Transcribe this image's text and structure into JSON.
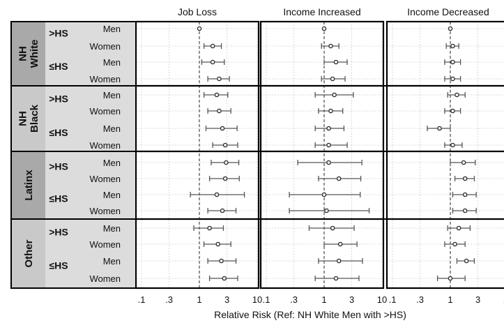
{
  "chart_data": {
    "type": "forest",
    "xlabel": "Relative Risk (Ref: NH White Men with >HS)",
    "x_scale": "log",
    "xlim": [
      0.1,
      10
    ],
    "xticks": [
      ".1",
      ".3",
      "1",
      "3",
      "10"
    ],
    "xtick_values": [
      0.1,
      0.3,
      1,
      3,
      10
    ],
    "reference_line": 1,
    "grid": true,
    "panels": [
      "Job Loss",
      "Income Increased",
      "Income Decreased"
    ],
    "groups": [
      {
        "name_lines": [
          "NH",
          "White"
        ],
        "shade": "dark"
      },
      {
        "name_lines": [
          "NH",
          "Black"
        ],
        "shade": "light"
      },
      {
        "name_lines": [
          "Latinx"
        ],
        "shade": "dark"
      },
      {
        "name_lines": [
          "Other"
        ],
        "shade": "light"
      }
    ],
    "rows": [
      {
        "group": 0,
        "edu": ">HS",
        "sex": "Men",
        "estimates": [
          [
            1.0,
            1.0,
            1.0
          ],
          [
            1.0,
            1.0,
            1.0
          ],
          [
            1.0,
            1.0,
            1.0
          ]
        ]
      },
      {
        "group": 0,
        "edu": "",
        "sex": "Women",
        "estimates": [
          [
            1.7,
            1.2,
            2.4
          ],
          [
            1.3,
            0.9,
            1.8
          ],
          [
            1.1,
            0.85,
            1.4
          ]
        ]
      },
      {
        "group": 0,
        "edu": "≤HS",
        "sex": "Men",
        "estimates": [
          [
            1.7,
            1.1,
            2.7
          ],
          [
            1.6,
            1.0,
            2.5
          ],
          [
            1.1,
            0.8,
            1.5
          ]
        ]
      },
      {
        "group": 0,
        "edu": "",
        "sex": "Women",
        "estimates": [
          [
            2.2,
            1.4,
            3.3
          ],
          [
            1.4,
            0.9,
            2.3
          ],
          [
            1.1,
            0.8,
            1.5
          ]
        ]
      },
      {
        "group": 1,
        "edu": ">HS",
        "sex": "Men",
        "estimates": [
          [
            2.0,
            1.2,
            3.1
          ],
          [
            1.5,
            0.7,
            3.2
          ],
          [
            1.3,
            0.9,
            1.8
          ]
        ]
      },
      {
        "group": 1,
        "edu": "",
        "sex": "Women",
        "estimates": [
          [
            2.2,
            1.4,
            3.5
          ],
          [
            1.3,
            0.8,
            2.1
          ],
          [
            1.1,
            0.8,
            1.5
          ]
        ]
      },
      {
        "group": 1,
        "edu": "≤HS",
        "sex": "Men",
        "estimates": [
          [
            2.5,
            1.3,
            4.5
          ],
          [
            1.2,
            0.7,
            2.2
          ],
          [
            0.65,
            0.4,
            1.0
          ]
        ]
      },
      {
        "group": 1,
        "edu": "",
        "sex": "Women",
        "estimates": [
          [
            2.8,
            1.7,
            4.6
          ],
          [
            1.2,
            0.7,
            2.5
          ],
          [
            1.1,
            0.8,
            1.6
          ]
        ]
      },
      {
        "group": 2,
        "edu": ">HS",
        "sex": "Men",
        "estimates": [
          [
            2.9,
            1.6,
            4.8
          ],
          [
            1.2,
            0.35,
            4.5
          ],
          [
            1.7,
            1.0,
            2.7
          ]
        ]
      },
      {
        "group": 2,
        "edu": "",
        "sex": "Women",
        "estimates": [
          [
            2.8,
            1.5,
            4.9
          ],
          [
            1.8,
            0.8,
            4.3
          ],
          [
            1.8,
            1.2,
            2.6
          ]
        ]
      },
      {
        "group": 2,
        "edu": "≤HS",
        "sex": "Men",
        "estimates": [
          [
            2.0,
            0.7,
            6.0
          ],
          [
            1.0,
            0.25,
            4.2
          ],
          [
            1.8,
            1.1,
            2.8
          ]
        ]
      },
      {
        "group": 2,
        "edu": "",
        "sex": "Women",
        "estimates": [
          [
            2.5,
            1.4,
            4.3
          ],
          [
            1.1,
            0.25,
            6.0
          ],
          [
            1.8,
            1.1,
            2.8
          ]
        ]
      },
      {
        "group": 3,
        "edu": ">HS",
        "sex": "Men",
        "estimates": [
          [
            1.5,
            0.8,
            2.6
          ],
          [
            1.4,
            0.55,
            3.3
          ],
          [
            1.4,
            0.9,
            2.2
          ]
        ]
      },
      {
        "group": 3,
        "edu": "",
        "sex": "Women",
        "estimates": [
          [
            2.1,
            1.2,
            3.5
          ],
          [
            1.9,
            1.0,
            3.7
          ],
          [
            1.2,
            0.8,
            1.8
          ]
        ]
      },
      {
        "group": 3,
        "edu": "≤HS",
        "sex": "Men",
        "estimates": [
          [
            2.4,
            1.4,
            4.3
          ],
          [
            1.8,
            0.8,
            4.6
          ],
          [
            1.9,
            1.3,
            2.6
          ]
        ]
      },
      {
        "group": 3,
        "edu": "",
        "sex": "Women",
        "estimates": [
          [
            2.7,
            1.5,
            4.6
          ],
          [
            1.6,
            0.7,
            4.0
          ],
          [
            1.0,
            0.6,
            1.8
          ]
        ]
      }
    ],
    "colors": {
      "group_dark": "#a9a9a9",
      "group_light": "#c9c9c9",
      "edu_col": "#dcdcdc",
      "panel_border": "#000000",
      "grid": "#cfcfcf",
      "marker": "#333333",
      "errorbar": "#555555"
    }
  }
}
